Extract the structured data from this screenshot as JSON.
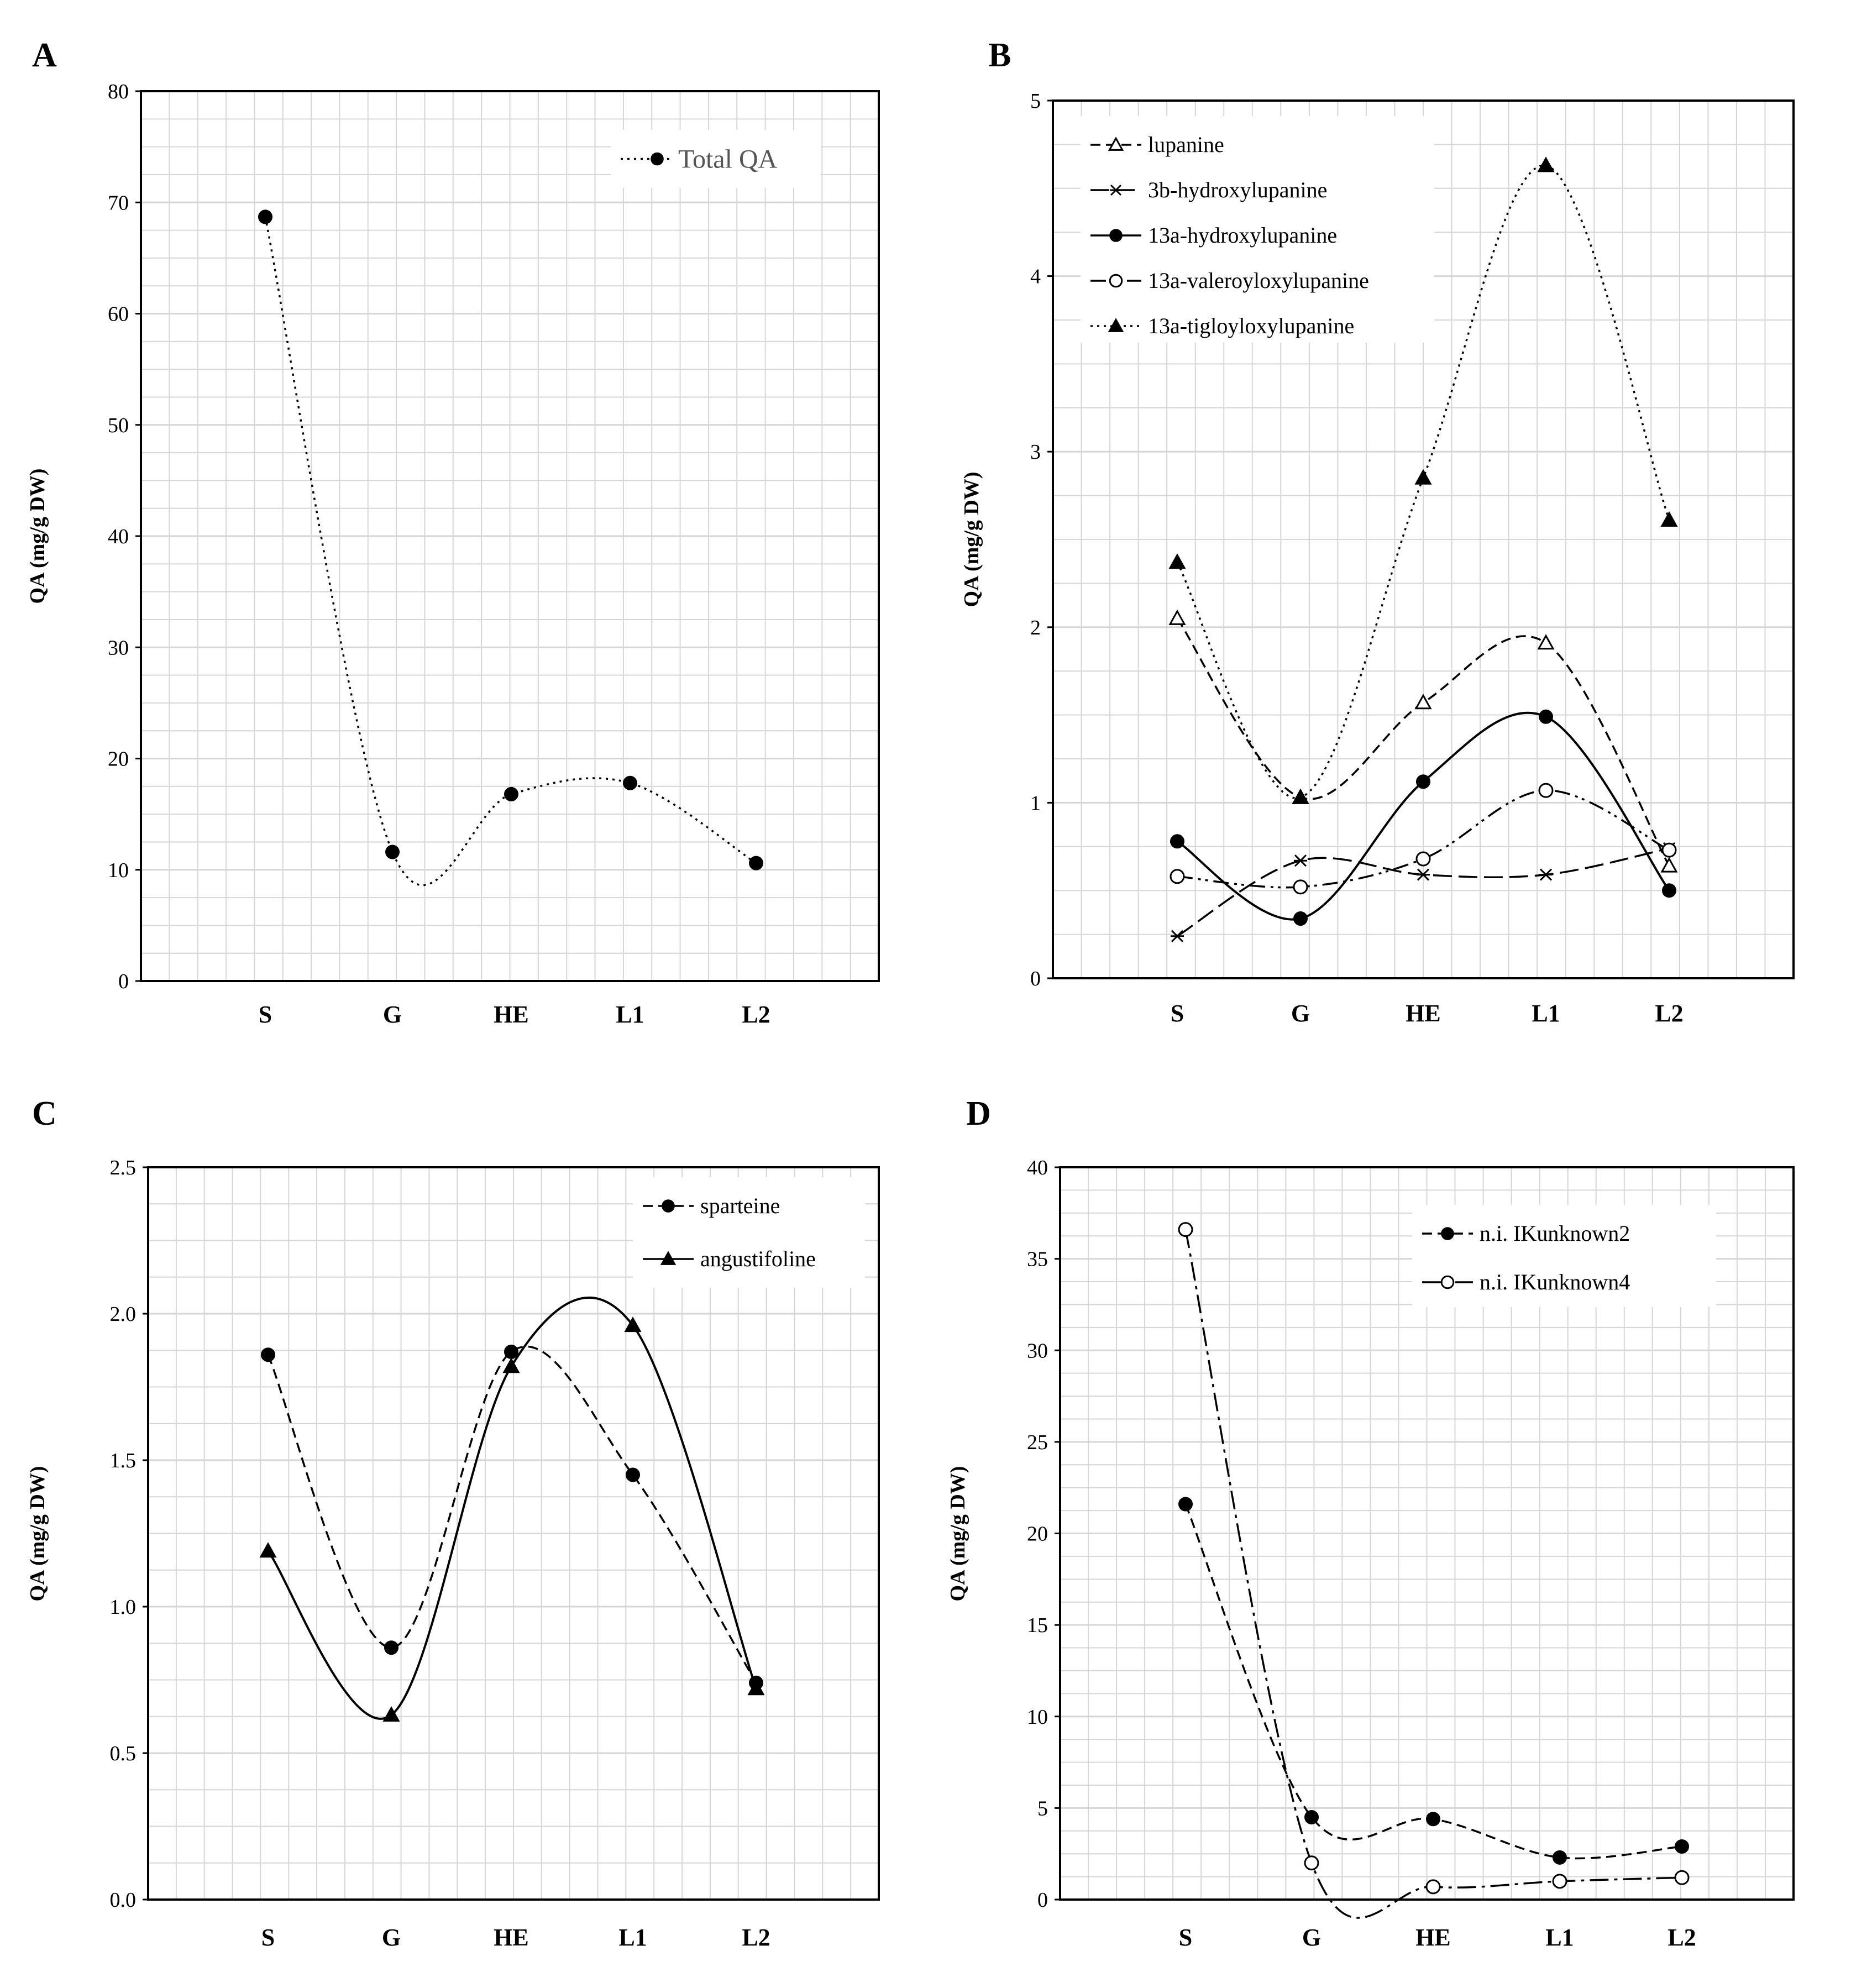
{
  "colors": {
    "grid": "#d6d6d6",
    "frame": "#000000",
    "legend_bg": "#ffffff"
  },
  "chart_data": [
    {
      "panel": "A",
      "type": "line",
      "title": "",
      "xlabel": "",
      "ylabel": "QA (mg/g DW)",
      "categories": [
        "S",
        "G",
        "HE",
        "L1",
        "L2"
      ],
      "ylim": [
        0,
        80
      ],
      "yticks": [
        0,
        10,
        20,
        30,
        40,
        50,
        60,
        70,
        80
      ],
      "yticklabels": [
        "0",
        "10",
        "20",
        "30",
        "40",
        "50",
        "60",
        "70",
        "80"
      ],
      "legend_position": "top-right",
      "series": [
        {
          "name": "Total QA",
          "values": [
            68.7,
            11.6,
            16.8,
            17.8,
            10.6
          ],
          "dash": "dotted",
          "marker": "filled-circle"
        }
      ]
    },
    {
      "panel": "B",
      "type": "line",
      "title": "",
      "xlabel": "",
      "ylabel": "QA (mg/g DW)",
      "categories": [
        "S",
        "G",
        "HE",
        "L1",
        "L2"
      ],
      "ylim": [
        0,
        5
      ],
      "yticks": [
        0,
        1,
        2,
        3,
        4,
        5
      ],
      "yticklabels": [
        "0",
        "1",
        "2",
        "3",
        "4",
        "5"
      ],
      "legend_position": "top-left",
      "series": [
        {
          "name": "lupanine",
          "values": [
            2.05,
            1.03,
            1.57,
            1.91,
            0.64
          ],
          "dash": "dashed",
          "marker": "open-triangle"
        },
        {
          "name": "3b-hydroxylupanine",
          "values": [
            0.24,
            0.67,
            0.59,
            0.59,
            0.74
          ],
          "dash": "long-dash",
          "marker": "star"
        },
        {
          "name": "13a-hydroxylupanine",
          "values": [
            0.78,
            0.34,
            1.12,
            1.49,
            0.5
          ],
          "dash": "solid",
          "marker": "filled-circle"
        },
        {
          "name": "13a-valeroyloxylupanine",
          "values": [
            0.58,
            0.52,
            0.68,
            1.07,
            0.73
          ],
          "dash": "dash-dot-dot",
          "marker": "open-circle"
        },
        {
          "name": "13a-tigloyloxylupanine",
          "values": [
            2.37,
            1.03,
            2.85,
            4.63,
            2.61
          ],
          "dash": "dotted",
          "marker": "filled-triangle"
        }
      ]
    },
    {
      "panel": "C",
      "type": "line",
      "title": "",
      "xlabel": "",
      "ylabel": "QA (mg/g DW)",
      "categories": [
        "S",
        "G",
        "HE",
        "L1",
        "L2"
      ],
      "ylim": [
        0,
        2.5
      ],
      "yticks": [
        0,
        0.5,
        1.0,
        1.5,
        2.0,
        2.5
      ],
      "yticklabels": [
        "0.0",
        "0.5",
        "1.0",
        "1.5",
        "2.0",
        "2.5"
      ],
      "legend_position": "top-right",
      "series": [
        {
          "name": "sparteine",
          "values": [
            1.86,
            0.86,
            1.87,
            1.45,
            0.74
          ],
          "dash": "dashed",
          "marker": "filled-circle"
        },
        {
          "name": "angustifoline",
          "values": [
            1.19,
            0.63,
            1.82,
            1.96,
            0.72
          ],
          "dash": "solid",
          "marker": "filled-triangle"
        }
      ]
    },
    {
      "panel": "D",
      "type": "line",
      "title": "",
      "xlabel": "",
      "ylabel": "QA (mg/g DW)",
      "categories": [
        "S",
        "G",
        "HE",
        "L1",
        "L2"
      ],
      "ylim": [
        0,
        40
      ],
      "yticks": [
        0,
        5,
        10,
        15,
        20,
        25,
        30,
        35,
        40
      ],
      "yticklabels": [
        "0",
        "5",
        "10",
        "15",
        "20",
        "25",
        "30",
        "35",
        "40"
      ],
      "legend_position": "top-right",
      "series": [
        {
          "name": "n.i. IKunknown2",
          "values": [
            21.6,
            4.5,
            4.4,
            2.3,
            2.9
          ],
          "dash": "dashed",
          "marker": "filled-circle"
        },
        {
          "name": "n.i. IKunknown4",
          "values": [
            36.6,
            2.0,
            0.7,
            1.0,
            1.2
          ],
          "dash": "dash-dot",
          "marker": "open-circle"
        }
      ]
    }
  ]
}
